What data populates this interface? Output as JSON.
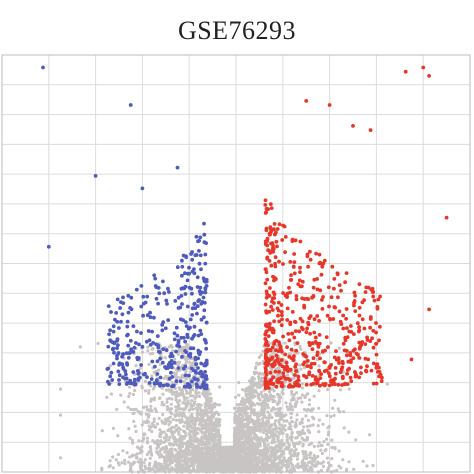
{
  "chart_data": {
    "type": "scatter",
    "title": "GSE76293",
    "xlabel": "",
    "ylabel": "",
    "grid": true,
    "xlim": [
      -4,
      4
    ],
    "ylim": [
      0,
      10
    ],
    "colors": {
      "down": "#4f5bbd",
      "up": "#e8362a",
      "not_significant": "#c9c4c4",
      "grid": "#dcdcdc",
      "frame": "#bdbdbd"
    },
    "series": [
      {
        "key": "down",
        "count": 380,
        "x_range": [
          -2.2,
          -0.5
        ],
        "y_range": [
          2.0,
          6.2
        ],
        "outliers": [
          [
            -3.3,
            9.7
          ],
          [
            -1.8,
            8.8
          ],
          [
            -2.4,
            7.1
          ],
          [
            -1.0,
            7.3
          ],
          [
            -1.6,
            6.8
          ],
          [
            -3.2,
            5.4
          ]
        ]
      },
      {
        "key": "up",
        "count": 560,
        "x_range": [
          0.5,
          2.5
        ],
        "y_range": [
          2.0,
          6.8
        ],
        "outliers": [
          [
            3.2,
            9.7
          ],
          [
            2.9,
            9.6
          ],
          [
            3.3,
            9.5
          ],
          [
            1.2,
            8.9
          ],
          [
            1.6,
            8.8
          ],
          [
            2.0,
            8.3
          ],
          [
            2.3,
            8.2
          ],
          [
            3.6,
            6.1
          ],
          [
            3.3,
            3.9
          ],
          [
            3.0,
            2.7
          ],
          [
            2.4,
            2.5
          ]
        ]
      },
      {
        "key": "not_significant",
        "count": 3800,
        "x_range": [
          -3.0,
          2.8
        ],
        "y_range": [
          0.0,
          3.2
        ]
      }
    ]
  }
}
